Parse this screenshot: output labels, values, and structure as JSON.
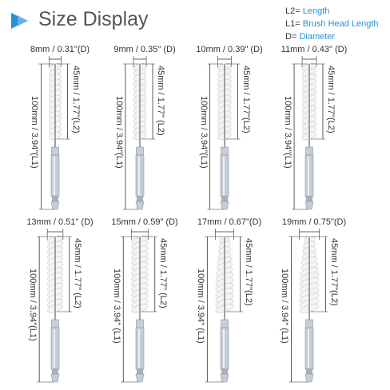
{
  "header": {
    "title": "Size Display",
    "arrow_icon": "play-arrow-icon",
    "arrow_color": "#2a8fd0"
  },
  "legend": {
    "items": [
      {
        "key": "L2=",
        "value": "Length"
      },
      {
        "key": "L1=",
        "value": "Brush Head Length"
      },
      {
        "key": "D=",
        "value": "Diameter"
      }
    ],
    "value_color": "#2a8fd0"
  },
  "brushes": [
    {
      "diameter": "8mm / 0.31\"(D)",
      "head": "45mm / 1.77\"(L2)",
      "total": "100mm / 3.94\"(L1)",
      "size": 8
    },
    {
      "diameter": "9mm / 0.35\" (D)",
      "head": "45mm / 1.77\" (L2)",
      "total": "100mm / 3.94\"(L1)",
      "size": 9
    },
    {
      "diameter": "10mm / 0.39\" (D)",
      "head": "45mm / 1.77\"(L2)",
      "total": "100mm / 3.94\"(L1)",
      "size": 10
    },
    {
      "diameter": "11mm / 0.43\" (D)",
      "head": "45mm / 1.77\"(L2)",
      "total": "100mm / 3.94\"(L1)",
      "size": 11
    },
    {
      "diameter": "13mm / 0.51\" (D)",
      "head": "45mm / 1.77\" (L2)",
      "total": "100mm / 3.94\"(L1)",
      "size": 13
    },
    {
      "diameter": "15mm / 0.59\" (D)",
      "head": "45mm / 1.77\" (L2)",
      "total": "100mm / 3.94\" (L1)",
      "size": 15
    },
    {
      "diameter": "17mm / 0.67\"(D)",
      "head": "45mm / 1.77\"(L2)",
      "total": "100mm / 3.94\" (L1)",
      "size": 17
    },
    {
      "diameter": "19mm / 0.75\"(D)",
      "head": "45mm / 1.77\"(L2)",
      "total": "100mm / 3.94\" (L1)",
      "size": 19
    }
  ]
}
